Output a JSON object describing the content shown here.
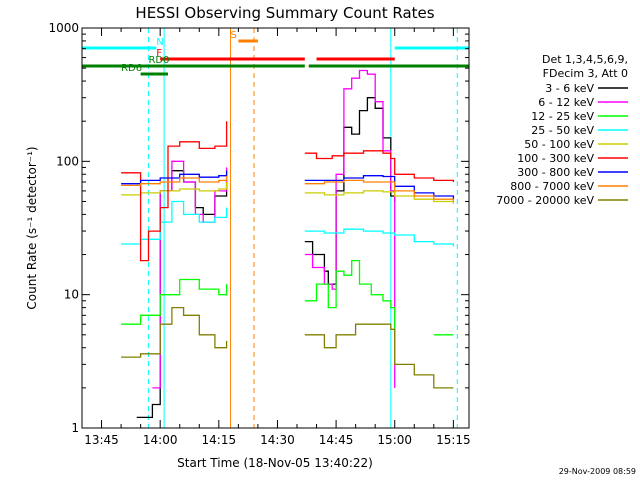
{
  "chart_data": {
    "type": "line",
    "title": "HESSI Observing Summary Count Rates",
    "xlabel": "Start Time (18-Nov-05 13:40:22)",
    "ylabel": "Count Rate (s⁻¹ detector⁻¹)",
    "yscale": "log",
    "ylim": [
      1,
      1000
    ],
    "y_ticks": [
      {
        "value": 1,
        "label": "1"
      },
      {
        "value": 10,
        "label": "10"
      },
      {
        "value": 100,
        "label": "100"
      },
      {
        "value": 1000,
        "label": "1000"
      }
    ],
    "xlim": [
      "13:40",
      "15:19"
    ],
    "x_ticks": [
      "13:45",
      "14:00",
      "14:15",
      "14:30",
      "14:45",
      "15:00",
      "15:15"
    ],
    "legend_header": [
      "Det 1,3,4,5,6,9,",
      "FDecim 3, Att 0"
    ],
    "legend_position": "right, outside plot",
    "series": [
      {
        "name": "3 - 6 keV",
        "color": "#000000",
        "points": [
          [
            "13:54",
            1.2
          ],
          [
            "13:58",
            1.5
          ],
          [
            "14:00",
            60
          ],
          [
            "14:03",
            85
          ],
          [
            "14:06",
            70
          ],
          [
            "14:09",
            45
          ],
          [
            "14:11",
            40
          ],
          [
            "14:14",
            55
          ],
          [
            "14:17",
            70
          ],
          [
            "14:37",
            25
          ],
          [
            "14:39",
            20
          ],
          [
            "14:42",
            15
          ],
          [
            "14:43",
            12
          ],
          [
            "14:45",
            60
          ],
          [
            "14:47",
            180
          ],
          [
            "14:49",
            160
          ],
          [
            "14:51",
            240
          ],
          [
            "14:53",
            300
          ],
          [
            "14:55",
            250
          ],
          [
            "14:57",
            150
          ],
          [
            "14:59",
            55
          ],
          [
            "15:00",
            50
          ]
        ]
      },
      {
        "name": "6 - 12 keV",
        "color": "#ff00ff",
        "points": [
          [
            "13:58",
            2
          ],
          [
            "14:00",
            60
          ],
          [
            "14:03",
            100
          ],
          [
            "14:06",
            70
          ],
          [
            "14:09",
            40
          ],
          [
            "14:11",
            35
          ],
          [
            "14:14",
            60
          ],
          [
            "14:17",
            90
          ],
          [
            "14:37",
            20
          ],
          [
            "14:39",
            16
          ],
          [
            "14:42",
            12
          ],
          [
            "14:44",
            11
          ],
          [
            "14:45",
            80
          ],
          [
            "14:47",
            350
          ],
          [
            "14:49",
            420
          ],
          [
            "14:51",
            480
          ],
          [
            "14:53",
            450
          ],
          [
            "14:55",
            280
          ],
          [
            "14:57",
            120
          ],
          [
            "14:59",
            60
          ],
          [
            "15:00",
            2
          ]
        ]
      },
      {
        "name": "12 - 25 keV",
        "color": "#00ff00",
        "points": [
          [
            "13:40",
            6
          ],
          [
            "13:50",
            6
          ],
          [
            "13:55",
            7
          ],
          [
            "14:00",
            10
          ],
          [
            "14:05",
            13
          ],
          [
            "14:10",
            11
          ],
          [
            "14:15",
            10
          ],
          [
            "14:17",
            12
          ],
          [
            "14:37",
            9
          ],
          [
            "14:40",
            12
          ],
          [
            "14:43",
            8
          ],
          [
            "14:45",
            15
          ],
          [
            "14:47",
            14
          ],
          [
            "14:49",
            18
          ],
          [
            "14:51",
            12
          ],
          [
            "14:54",
            10
          ],
          [
            "14:57",
            9
          ],
          [
            "14:59",
            8
          ],
          [
            "15:00",
            5
          ],
          [
            "15:10",
            5
          ],
          [
            "15:15",
            5
          ]
        ]
      },
      {
        "name": "25 - 50 keV",
        "color": "#00ffff",
        "points": [
          [
            "13:40",
            24
          ],
          [
            "13:50",
            24
          ],
          [
            "13:55",
            26
          ],
          [
            "14:00",
            35
          ],
          [
            "14:03",
            50
          ],
          [
            "14:06",
            40
          ],
          [
            "14:10",
            35
          ],
          [
            "14:14",
            38
          ],
          [
            "14:17",
            45
          ],
          [
            "14:37",
            30
          ],
          [
            "14:42",
            29
          ],
          [
            "14:47",
            31
          ],
          [
            "14:52",
            30
          ],
          [
            "14:57",
            29
          ],
          [
            "15:00",
            28
          ],
          [
            "15:05",
            25
          ],
          [
            "15:10",
            24
          ],
          [
            "15:15",
            23
          ]
        ]
      },
      {
        "name": "50 - 100 keV",
        "color": "#cccc00",
        "points": [
          [
            "13:40",
            55
          ],
          [
            "13:50",
            56
          ],
          [
            "13:55",
            58
          ],
          [
            "14:00",
            60
          ],
          [
            "14:05",
            62
          ],
          [
            "14:10",
            60
          ],
          [
            "14:15",
            62
          ],
          [
            "14:17",
            70
          ],
          [
            "14:37",
            58
          ],
          [
            "14:42",
            56
          ],
          [
            "14:47",
            58
          ],
          [
            "14:52",
            60
          ],
          [
            "14:57",
            59
          ],
          [
            "15:00",
            55
          ],
          [
            "15:05",
            52
          ],
          [
            "15:10",
            50
          ],
          [
            "15:15",
            48
          ]
        ]
      },
      {
        "name": "100 - 300 keV",
        "color": "#ff0000",
        "points": [
          [
            "13:40",
            85
          ],
          [
            "13:50",
            82
          ],
          [
            "13:55",
            18
          ],
          [
            "13:57",
            30
          ],
          [
            "14:00",
            45
          ],
          [
            "14:02",
            130
          ],
          [
            "14:05",
            140
          ],
          [
            "14:10",
            125
          ],
          [
            "14:14",
            130
          ],
          [
            "14:17",
            200
          ],
          [
            "14:37",
            115
          ],
          [
            "14:40",
            105
          ],
          [
            "14:42",
            105
          ],
          [
            "14:44",
            110
          ],
          [
            "14:47",
            115
          ],
          [
            "14:52",
            120
          ],
          [
            "14:57",
            115
          ],
          [
            "14:59",
            105
          ],
          [
            "15:00",
            80
          ],
          [
            "15:05",
            75
          ],
          [
            "15:10",
            72
          ],
          [
            "15:15",
            70
          ]
        ]
      },
      {
        "name": "300 - 800 keV",
        "color": "#0000ff",
        "points": [
          [
            "13:40",
            70
          ],
          [
            "13:50",
            68
          ],
          [
            "13:55",
            72
          ],
          [
            "14:00",
            75
          ],
          [
            "14:05",
            80
          ],
          [
            "14:10",
            76
          ],
          [
            "14:15",
            78
          ],
          [
            "14:17",
            85
          ],
          [
            "14:37",
            72
          ],
          [
            "14:42",
            72
          ],
          [
            "14:47",
            75
          ],
          [
            "14:52",
            78
          ],
          [
            "14:57",
            77
          ],
          [
            "15:00",
            65
          ],
          [
            "15:05",
            58
          ],
          [
            "15:10",
            55
          ],
          [
            "15:15",
            52
          ]
        ]
      },
      {
        "name": "800 - 7000 keV",
        "color": "#ff8000",
        "points": [
          [
            "13:40",
            68
          ],
          [
            "13:50",
            66
          ],
          [
            "13:55",
            68
          ],
          [
            "14:00",
            70
          ],
          [
            "14:05",
            75
          ],
          [
            "14:10",
            70
          ],
          [
            "14:15",
            72
          ],
          [
            "14:17",
            78
          ],
          [
            "14:37",
            68
          ],
          [
            "14:42",
            70
          ],
          [
            "14:47",
            72
          ],
          [
            "14:52",
            70
          ],
          [
            "14:57",
            70
          ],
          [
            "15:00",
            60
          ],
          [
            "15:05",
            55
          ],
          [
            "15:10",
            52
          ],
          [
            "15:15",
            50
          ]
        ]
      },
      {
        "name": "7000 - 20000 keV",
        "color": "#808000",
        "points": [
          [
            "13:40",
            3.5
          ],
          [
            "13:50",
            3.4
          ],
          [
            "13:55",
            3.6
          ],
          [
            "14:00",
            6
          ],
          [
            "14:03",
            8
          ],
          [
            "14:06",
            7
          ],
          [
            "14:10",
            5
          ],
          [
            "14:14",
            4
          ],
          [
            "14:17",
            4.5
          ],
          [
            "14:37",
            5
          ],
          [
            "14:42",
            4
          ],
          [
            "14:45",
            5
          ],
          [
            "14:50",
            6
          ],
          [
            "14:55",
            6
          ],
          [
            "14:59",
            5.5
          ],
          [
            "15:00",
            3
          ],
          [
            "15:05",
            2.5
          ],
          [
            "15:10",
            2
          ],
          [
            "15:15",
            2
          ]
        ]
      }
    ],
    "flag_bars": [
      {
        "label": "N",
        "color": "#00ffff",
        "intervals": [
          [
            "13:40",
            "13:59"
          ],
          [
            "15:00",
            "15:19"
          ]
        ]
      },
      {
        "label": "S",
        "color": "#ff8000",
        "intervals": [
          [
            "14:20",
            "14:25"
          ]
        ]
      },
      {
        "label": "F",
        "color": "#ff0000",
        "intervals": [
          [
            "14:00",
            "14:37"
          ],
          [
            "14:40",
            "15:00"
          ]
        ]
      },
      {
        "label": "RD0",
        "color": "#008000",
        "intervals": [
          [
            "13:40",
            "14:37"
          ],
          [
            "14:38",
            "15:19"
          ]
        ]
      },
      {
        "label": "RD6",
        "color": "#008000",
        "intervals": [
          [
            "13:55",
            "14:02"
          ]
        ]
      }
    ],
    "vertical_lines": [
      {
        "time": "13:57",
        "color": "#00ffff",
        "style": "dashed"
      },
      {
        "time": "14:01",
        "color": "#00ffff",
        "style": "solid"
      },
      {
        "time": "14:18",
        "color": "#ff8000",
        "style": "solid"
      },
      {
        "time": "14:24",
        "color": "#ff8000",
        "style": "dashed"
      },
      {
        "time": "14:59",
        "color": "#00ffff",
        "style": "solid"
      },
      {
        "time": "15:16",
        "color": "#00ffff",
        "style": "dashed"
      }
    ],
    "grid": false
  },
  "footer": {
    "timestamp": "29-Nov-2009 08:59"
  }
}
